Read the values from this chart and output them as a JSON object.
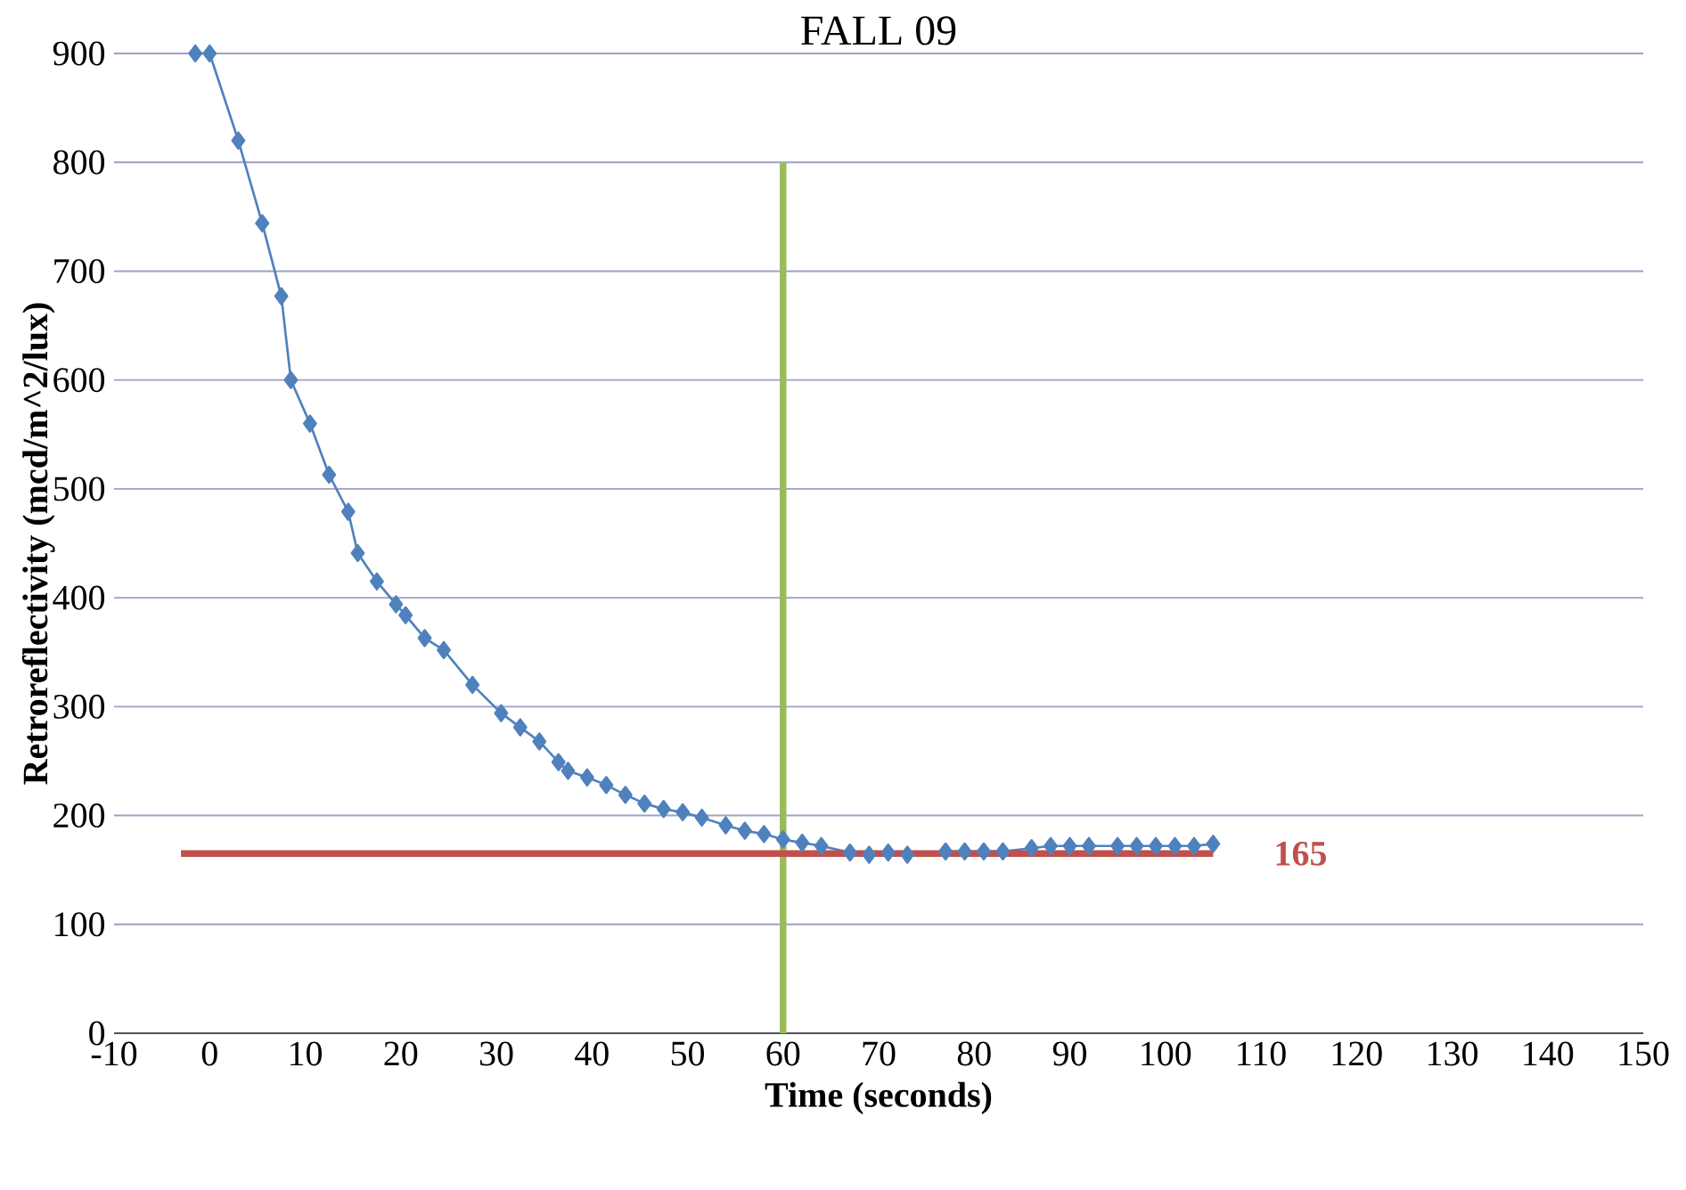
{
  "chart_data": {
    "type": "line",
    "title": "FALL 09",
    "xlabel": "Time (seconds)",
    "ylabel": "Retroreflectivity (mcd/m^2/lux)",
    "xlim": [
      -10,
      150
    ],
    "xticks": [
      -10,
      0,
      10,
      20,
      30,
      40,
      50,
      60,
      70,
      80,
      90,
      100,
      110,
      120,
      130,
      140,
      150
    ],
    "ylim": [
      0,
      900
    ],
    "yticks": [
      0,
      100,
      200,
      300,
      400,
      500,
      600,
      700,
      800,
      900
    ],
    "grid": "y",
    "series": [
      {
        "color": "#4f81bd",
        "marker": "diamond",
        "x": [
          -1.5,
          0,
          3,
          5.5,
          7.5,
          8.5,
          10.5,
          12.5,
          14.5,
          15.5,
          17.5,
          19.5,
          20.5,
          22.5,
          24.5,
          27.5,
          30.5,
          32.5,
          34.5,
          36.5,
          37.5,
          39.5,
          41.5,
          43.5,
          45.5,
          47.5,
          49.5,
          51.5,
          54,
          56,
          58,
          60,
          62,
          64,
          67,
          69,
          71,
          73,
          77,
          79,
          81,
          83,
          86,
          88,
          90,
          92,
          95,
          97,
          99,
          101,
          103,
          105
        ],
        "values": [
          900,
          900,
          820,
          744,
          677,
          600,
          560,
          513,
          479,
          441,
          415,
          394,
          384,
          363,
          352,
          320,
          294,
          281,
          268,
          249,
          241,
          235,
          228,
          219,
          211,
          206,
          203,
          198,
          191,
          186,
          183,
          178,
          175,
          172,
          166,
          164,
          166,
          164,
          167,
          167,
          167,
          167,
          170,
          172,
          172,
          172,
          172,
          172,
          172,
          172,
          172,
          174
        ]
      },
      {
        "color": "#9bbb59",
        "marker": "none",
        "x": [
          60,
          60
        ],
        "values": [
          0,
          800
        ]
      },
      {
        "color": "#c0504d",
        "marker": "none",
        "x": [
          -3,
          105
        ],
        "values": [
          165,
          165
        ]
      }
    ],
    "annotations": [
      "165"
    ]
  }
}
